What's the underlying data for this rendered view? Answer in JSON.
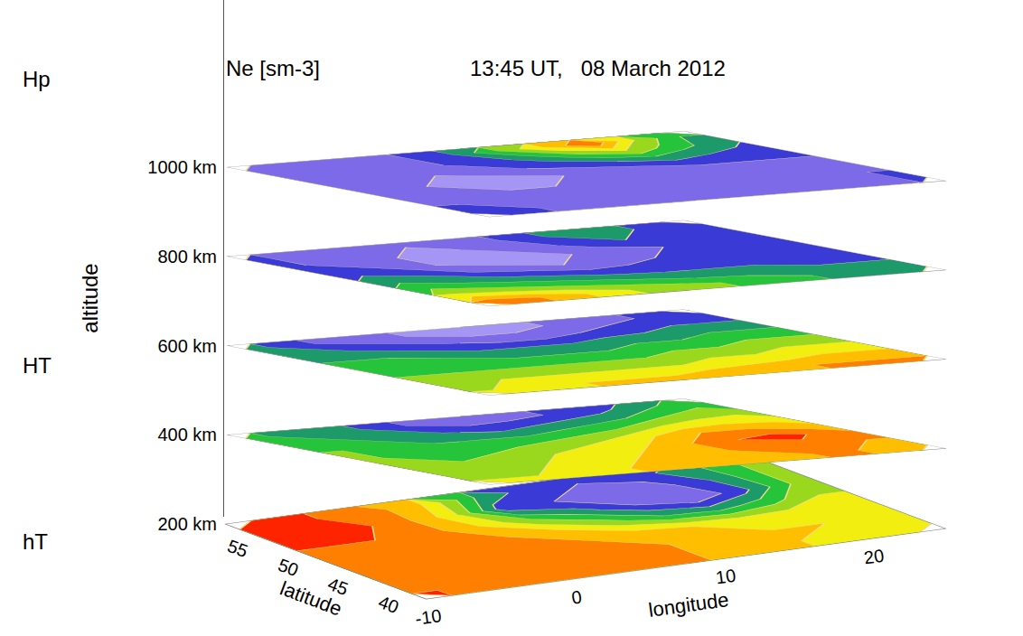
{
  "chart_data": {
    "type": "contour_layers",
    "title": "Ne [sm-3]",
    "subtitle": "13:45 UT,   08 March 2012",
    "x_label": "longitude",
    "y_label": "latitude",
    "z_label": "altitude",
    "xlim": [
      -10,
      25
    ],
    "xticks": [
      -10,
      0,
      10,
      20
    ],
    "ylim": [
      37,
      57
    ],
    "yticks": [
      40,
      45,
      50,
      55
    ],
    "zlim": [
      200,
      1000
    ],
    "zticks": [
      {
        "value": 200,
        "label": "200 km"
      },
      {
        "value": 400,
        "label": "400 km"
      },
      {
        "value": 600,
        "label": "600 km"
      },
      {
        "value": 800,
        "label": "800 km"
      },
      {
        "value": 1000,
        "label": "1000 km"
      }
    ],
    "annotations": [
      "Hp",
      "HT",
      "hT"
    ],
    "levels": [
      0,
      1,
      2,
      3,
      4,
      5,
      6,
      7,
      8,
      9
    ],
    "colors": [
      "#a596f5",
      "#7c6ae8",
      "#3a3ad6",
      "#1c9a6a",
      "#26c43a",
      "#9ad81e",
      "#f2ee10",
      "#ffbf00",
      "#ff7f00",
      "#ff2400"
    ],
    "layers": [
      {
        "altitude": 200,
        "cells": [
          [
            9,
            9,
            8.5,
            7,
            4,
            2.5,
            2,
            2.5,
            3.5,
            5
          ],
          [
            9,
            9.5,
            8.5,
            6.5,
            2.5,
            2,
            1.5,
            1.5,
            3,
            5
          ],
          [
            9,
            9,
            8.5,
            7,
            5,
            3.5,
            2,
            1,
            2.5,
            5
          ],
          [
            8.5,
            8.5,
            8.5,
            8,
            7,
            5.5,
            4,
            3.5,
            4.5,
            6
          ],
          [
            8.5,
            8.5,
            8.5,
            8.5,
            8,
            7.5,
            7,
            6.5,
            6.5,
            6.5
          ],
          [
            8.5,
            8.5,
            8.5,
            8.5,
            8.5,
            8,
            7.5,
            7,
            7,
            6.5
          ],
          [
            9,
            8.5,
            8.5,
            8.5,
            8.5,
            8,
            7.5,
            7,
            6.5,
            6.5
          ]
        ]
      },
      {
        "altitude": 400,
        "cells": [
          [
            4,
            3.5,
            3,
            2,
            1.5,
            1.5,
            2,
            2.5,
            3.5,
            4.5
          ],
          [
            4.5,
            4,
            3.5,
            3,
            2.5,
            3,
            3.5,
            4,
            5,
            5.5
          ],
          [
            5,
            4.5,
            4,
            4,
            4,
            4.5,
            5,
            6,
            6.5,
            6.5
          ],
          [
            5,
            4.5,
            4.5,
            5,
            5.5,
            6,
            7,
            8,
            8,
            7.5
          ],
          [
            5,
            5,
            5.5,
            6,
            6.5,
            7,
            8,
            9,
            9.5,
            8.5
          ],
          [
            5.5,
            5.5,
            6,
            6.5,
            7,
            7.5,
            8,
            8.5,
            8.5,
            8
          ],
          [
            6,
            6,
            6.5,
            7,
            7,
            7.5,
            7.5,
            8,
            8,
            7.5
          ]
        ]
      },
      {
        "altitude": 600,
        "cells": [
          [
            3,
            2,
            1.5,
            1,
            0.5,
            0.5,
            1,
            1.5,
            2,
            2.5
          ],
          [
            3.5,
            3,
            2.5,
            2,
            1.5,
            1.5,
            2,
            2.5,
            3,
            3
          ],
          [
            4,
            4,
            3.5,
            3,
            3,
            3,
            3.5,
            3.5,
            4,
            4
          ],
          [
            4.5,
            4.5,
            4.5,
            4,
            4,
            4,
            4.5,
            4.5,
            5,
            5
          ],
          [
            5,
            5,
            5,
            5,
            5,
            5,
            5.5,
            5.5,
            6,
            6
          ],
          [
            5.5,
            6,
            6,
            6,
            6,
            6,
            6.5,
            6.5,
            7,
            7
          ],
          [
            6,
            6.5,
            7,
            7,
            7,
            7.5,
            7.5,
            8,
            8,
            8
          ]
        ]
      },
      {
        "altitude": 800,
        "cells": [
          [
            2,
            1.5,
            1,
            1,
            1,
            2,
            3,
            4,
            3,
            2
          ],
          [
            2,
            1.5,
            1,
            0.5,
            1,
            1.5,
            2.5,
            3,
            2.5,
            2
          ],
          [
            2.5,
            2,
            1,
            0.5,
            0,
            1,
            1.5,
            2,
            2,
            2
          ],
          [
            3.5,
            3,
            2,
            1.5,
            1,
            1.5,
            2,
            2,
            2,
            2
          ],
          [
            4.5,
            4,
            3.5,
            3,
            2.5,
            2.5,
            2.5,
            2.5,
            2.5,
            2.5
          ],
          [
            6,
            5.5,
            5,
            4.5,
            4,
            3.5,
            3.5,
            3.5,
            3,
            3
          ],
          [
            8.5,
            8,
            7,
            6,
            5.5,
            5,
            4.5,
            4,
            3.5,
            3.5
          ]
        ]
      },
      {
        "altitude": 1000,
        "cells": [
          [
            1.5,
            1.5,
            1.5,
            2,
            3,
            5,
            7,
            9,
            6,
            4
          ],
          [
            1.5,
            1.5,
            1.5,
            2,
            2.5,
            3.5,
            5,
            6,
            4.5,
            3.5
          ],
          [
            1.5,
            1,
            1,
            1.5,
            2,
            2.5,
            3,
            3.5,
            3,
            2.5
          ],
          [
            1.5,
            1,
            0.5,
            0.5,
            1,
            1,
            1.5,
            2,
            2,
            2
          ],
          [
            1.5,
            1.5,
            1,
            1,
            1,
            1,
            1.5,
            1.5,
            1.5,
            1.5
          ],
          [
            2,
            1.5,
            1.5,
            1.5,
            1.5,
            1.5,
            1.5,
            1.5,
            1.5,
            2
          ],
          [
            2,
            2,
            1.5,
            1.5,
            1.5,
            1.5,
            1.5,
            1.5,
            1.5,
            2
          ]
        ]
      }
    ]
  }
}
